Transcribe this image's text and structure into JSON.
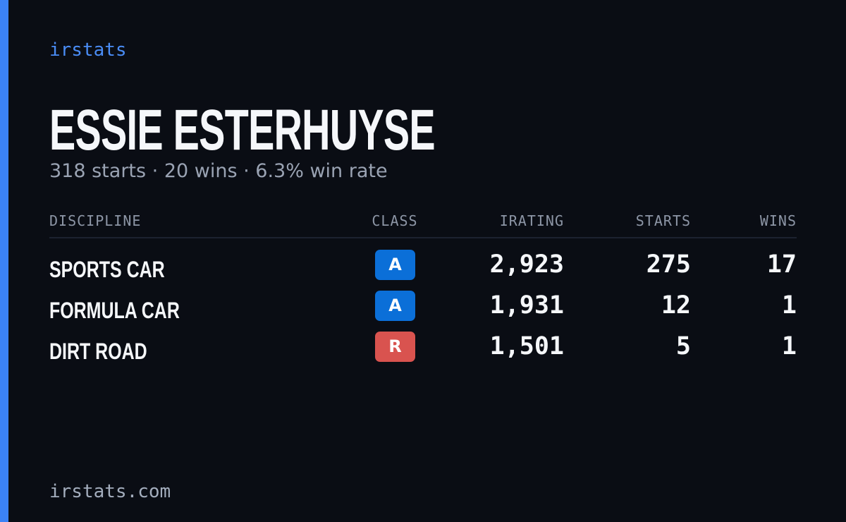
{
  "brand": "irstats",
  "driver": {
    "name": "ESSIE ESTERHUYSE",
    "summary": "318 starts · 20 wins · 6.3% win rate"
  },
  "table": {
    "headers": [
      "DISCIPLINE",
      "CLASS",
      "IRATING",
      "STARTS",
      "WINS"
    ],
    "rows": [
      {
        "discipline": "SPORTS CAR",
        "class": "A",
        "class_color": "#0b6fd8",
        "irating": "2,923",
        "starts": "275",
        "wins": "17"
      },
      {
        "discipline": "FORMULA CAR",
        "class": "A",
        "class_color": "#0b6fd8",
        "irating": "1,931",
        "starts": "12",
        "wins": "1"
      },
      {
        "discipline": "DIRT ROAD",
        "class": "R",
        "class_color": "#d9534f",
        "irating": "1,501",
        "starts": "5",
        "wins": "1"
      }
    ]
  },
  "footer": "irstats.com"
}
